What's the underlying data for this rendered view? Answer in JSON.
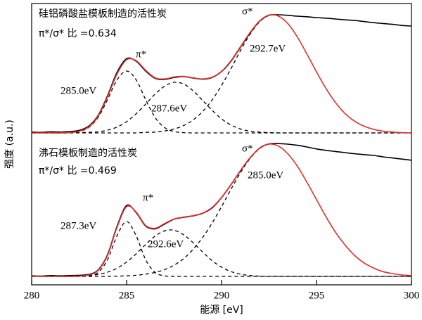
{
  "chart_data": {
    "type": "line",
    "xlabel": "能源 [eV]",
    "ylabel": "强度 (a.u.)",
    "xlim": [
      280,
      300
    ],
    "xticks": [
      280,
      285,
      290,
      295,
      300
    ],
    "ylim": [
      0,
      100
    ],
    "annotations": [
      "硅铝磷酸盐模板制造的活性炭",
      "π*/σ* 比 =0.634",
      "π*",
      "σ*",
      "285.0eV",
      "287.6eV",
      "292.7eV",
      "沸石模板制造的活性炭",
      "π*/σ* 比 =0.469",
      "π*",
      "σ*",
      "285.0eV",
      "287.3eV",
      "292.6eV"
    ],
    "x": [
      280,
      280.5,
      281,
      281.5,
      282,
      282.5,
      283,
      283.5,
      284,
      284.5,
      285,
      285.5,
      286,
      286.5,
      287,
      287.5,
      288,
      288.5,
      289,
      289.5,
      290,
      290.5,
      291,
      291.5,
      292,
      292.5,
      293,
      293.5,
      294,
      294.5,
      295,
      295.5,
      296,
      296.5,
      297,
      297.5,
      298,
      298.5,
      299,
      299.5,
      300
    ],
    "series": [
      {
        "color": "#000000",
        "style": "dashed",
        "values": [
          54,
          54,
          54,
          54,
          54.1,
          54.5,
          55.9,
          59.5,
          65.9,
          72.9,
          76.0,
          72.9,
          65.9,
          59.5,
          55.9,
          54.5,
          54.1,
          54,
          54,
          54,
          54,
          54,
          54,
          54,
          54,
          54,
          54,
          54,
          54,
          54,
          54,
          54,
          54,
          54,
          54,
          54,
          54,
          54,
          54,
          54,
          54
        ]
      },
      {
        "color": "#000000",
        "style": "dashed",
        "values": [
          54,
          54,
          54,
          54,
          54,
          54.1,
          54.2,
          54.4,
          55.0,
          56.1,
          58.0,
          60.8,
          64.2,
          67.8,
          70.6,
          72.0,
          71.4,
          69.0,
          65.6,
          62.1,
          59.0,
          56.8,
          55.4,
          54.6,
          54.3,
          54.1,
          54,
          54,
          54,
          54,
          54,
          54,
          54,
          54,
          54,
          54,
          54,
          54,
          54,
          54,
          54
        ]
      },
      {
        "color": "#000000",
        "style": "dashed",
        "values": [
          54,
          54,
          54,
          54,
          54,
          54,
          54,
          54,
          54,
          54,
          54,
          54,
          54.2,
          54.3,
          54.7,
          55.4,
          56.6,
          58.6,
          61.6,
          65.7,
          70.9,
          76.9,
          83.3,
          89.1,
          93.5,
          95.8,
          95.5,
          92.8,
          88.0,
          82.0,
          75.7,
          69.8,
          64.8,
          60.9,
          58.2,
          56.4,
          55.3,
          54.6,
          54.3,
          54.1,
          54.0
        ]
      },
      {
        "color": "#000000",
        "style": "solid",
        "values": [
          54.3,
          54.2,
          54.4,
          54.3,
          54.5,
          54.9,
          56.4,
          60.2,
          67.3,
          75.6,
          80.4,
          79.5,
          76.0,
          73.4,
          73.0,
          73.7,
          74.0,
          73.5,
          73.1,
          73.7,
          75.8,
          79.5,
          84.5,
          89.5,
          93.7,
          95.8,
          96.0,
          95.8,
          95.5,
          95.3,
          95.0,
          94.8,
          94.5,
          94.2,
          94.0,
          93.6,
          93.2,
          92.9,
          92.6,
          92.2,
          92.0
        ]
      },
      {
        "color": "#e8312f",
        "style": "solid",
        "values": [
          54,
          54,
          54,
          54,
          54.1,
          54.6,
          56.1,
          59.9,
          66.9,
          75.0,
          80.0,
          79.7,
          76.3,
          73.6,
          73.2,
          73.9,
          74.1,
          73.6,
          73.2,
          73.8,
          75.9,
          79.7,
          84.7,
          89.7,
          93.8,
          95.9,
          95.5,
          92.8,
          88.0,
          82.0,
          75.7,
          69.8,
          64.8,
          60.9,
          58.2,
          56.4,
          55.3,
          54.6,
          54.3,
          54.1,
          54.0
        ]
      },
      {
        "color": "#000000",
        "style": "dashed",
        "values": [
          3,
          3,
          3,
          3,
          3,
          3,
          3.2,
          4.4,
          9.0,
          17.5,
          22.5,
          17.5,
          9.0,
          4.4,
          3.2,
          3,
          3,
          3,
          3,
          3,
          3,
          3,
          3,
          3,
          3,
          3,
          3,
          3,
          3,
          3,
          3,
          3,
          3,
          3,
          3,
          3,
          3,
          3,
          3,
          3,
          3
        ]
      },
      {
        "color": "#000000",
        "style": "dashed",
        "values": [
          3,
          3,
          3,
          3,
          3,
          3.1,
          3.3,
          3.7,
          4.5,
          5.9,
          8.1,
          11.0,
          14.3,
          17.3,
          19.2,
          19.4,
          17.8,
          15.0,
          11.7,
          8.6,
          6.3,
          4.7,
          3.8,
          3.3,
          3.1,
          3,
          3,
          3,
          3,
          3,
          3,
          3,
          3,
          3,
          3,
          3,
          3,
          3,
          3,
          3,
          3
        ]
      },
      {
        "color": "#000000",
        "style": "dashed",
        "values": [
          3,
          3,
          3,
          3,
          3,
          3,
          3,
          3,
          3,
          3.1,
          3.2,
          3.4,
          3.8,
          4.4,
          5.4,
          7.0,
          9.3,
          12.6,
          16.8,
          21.9,
          27.8,
          34.0,
          39.9,
          44.9,
          48.4,
          50.0,
          49.3,
          46.5,
          42.1,
          36.4,
          30.3,
          24.2,
          18.7,
          14.2,
          10.5,
          7.8,
          6.0,
          4.7,
          4.0,
          3.5,
          3.3
        ]
      },
      {
        "color": "#000000",
        "style": "solid",
        "values": [
          3.2,
          3.1,
          3.3,
          3.2,
          3.3,
          3.4,
          3.7,
          5.3,
          10.8,
          20.9,
          28.2,
          25.7,
          20.9,
          19.9,
          21.6,
          23.3,
          24.0,
          24.5,
          25.4,
          27.3,
          31.0,
          35.6,
          40.6,
          45.1,
          48.6,
          50.1,
          50.2,
          50.0,
          49.6,
          49.0,
          48.3,
          47.8,
          47.4,
          47.0,
          46.6,
          46.3,
          46.0,
          45.5,
          45.1,
          44.7,
          44.3
        ]
      },
      {
        "color": "#e8312f",
        "style": "solid",
        "values": [
          3,
          3,
          3,
          3,
          3,
          3.1,
          3.5,
          5.1,
          10.5,
          20.5,
          27.8,
          25.9,
          21.1,
          20.1,
          21.8,
          23.4,
          24.1,
          24.6,
          25.5,
          27.5,
          31.1,
          35.7,
          40.7,
          45.2,
          48.5,
          50.0,
          49.3,
          46.5,
          42.1,
          36.4,
          30.3,
          24.2,
          18.7,
          14.2,
          10.5,
          7.8,
          6.0,
          4.7,
          4.0,
          3.5,
          3.3
        ]
      }
    ]
  }
}
